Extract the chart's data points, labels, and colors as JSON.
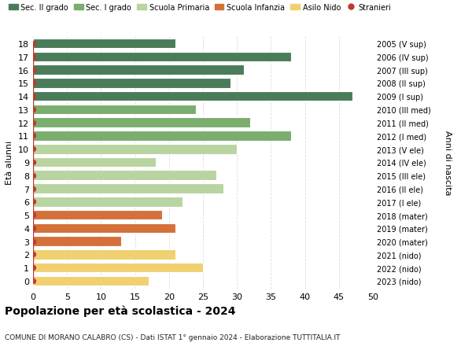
{
  "ages": [
    18,
    17,
    16,
    15,
    14,
    13,
    12,
    11,
    10,
    9,
    8,
    7,
    6,
    5,
    4,
    3,
    2,
    1,
    0
  ],
  "values": [
    21,
    38,
    31,
    29,
    47,
    24,
    32,
    38,
    30,
    18,
    27,
    28,
    22,
    19,
    21,
    13,
    21,
    25,
    17
  ],
  "right_labels": [
    "2005 (V sup)",
    "2006 (IV sup)",
    "2007 (III sup)",
    "2008 (II sup)",
    "2009 (I sup)",
    "2010 (III med)",
    "2011 (II med)",
    "2012 (I med)",
    "2013 (V ele)",
    "2014 (IV ele)",
    "2015 (III ele)",
    "2016 (II ele)",
    "2017 (I ele)",
    "2018 (mater)",
    "2019 (mater)",
    "2020 (mater)",
    "2021 (nido)",
    "2022 (nido)",
    "2023 (nido)"
  ],
  "bar_colors": [
    "#4a7c59",
    "#4a7c59",
    "#4a7c59",
    "#4a7c59",
    "#4a7c59",
    "#7aad6e",
    "#7aad6e",
    "#7aad6e",
    "#b8d4a0",
    "#b8d4a0",
    "#b8d4a0",
    "#b8d4a0",
    "#b8d4a0",
    "#d4703a",
    "#d4703a",
    "#d4703a",
    "#f0d070",
    "#f0d070",
    "#f0d070"
  ],
  "legend_labels": [
    "Sec. II grado",
    "Sec. I grado",
    "Scuola Primaria",
    "Scuola Infanzia",
    "Asilo Nido",
    "Stranieri"
  ],
  "legend_colors": [
    "#4a7c59",
    "#7aad6e",
    "#b8d4a0",
    "#d4703a",
    "#f0d070",
    "#c0392b"
  ],
  "stranieri_color": "#c0392b",
  "title": "Popolazione per età scolastica - 2024",
  "subtitle": "COMUNE DI MORANO CALABRO (CS) - Dati ISTAT 1° gennaio 2024 - Elaborazione TUTTITALIA.IT",
  "ylabel": "Età alunni",
  "right_ylabel": "Anni di nascita",
  "xlim": [
    0,
    50
  ],
  "xticks": [
    0,
    5,
    10,
    15,
    20,
    25,
    30,
    35,
    40,
    45,
    50
  ],
  "background_color": "#ffffff",
  "grid_color": "#dddddd"
}
